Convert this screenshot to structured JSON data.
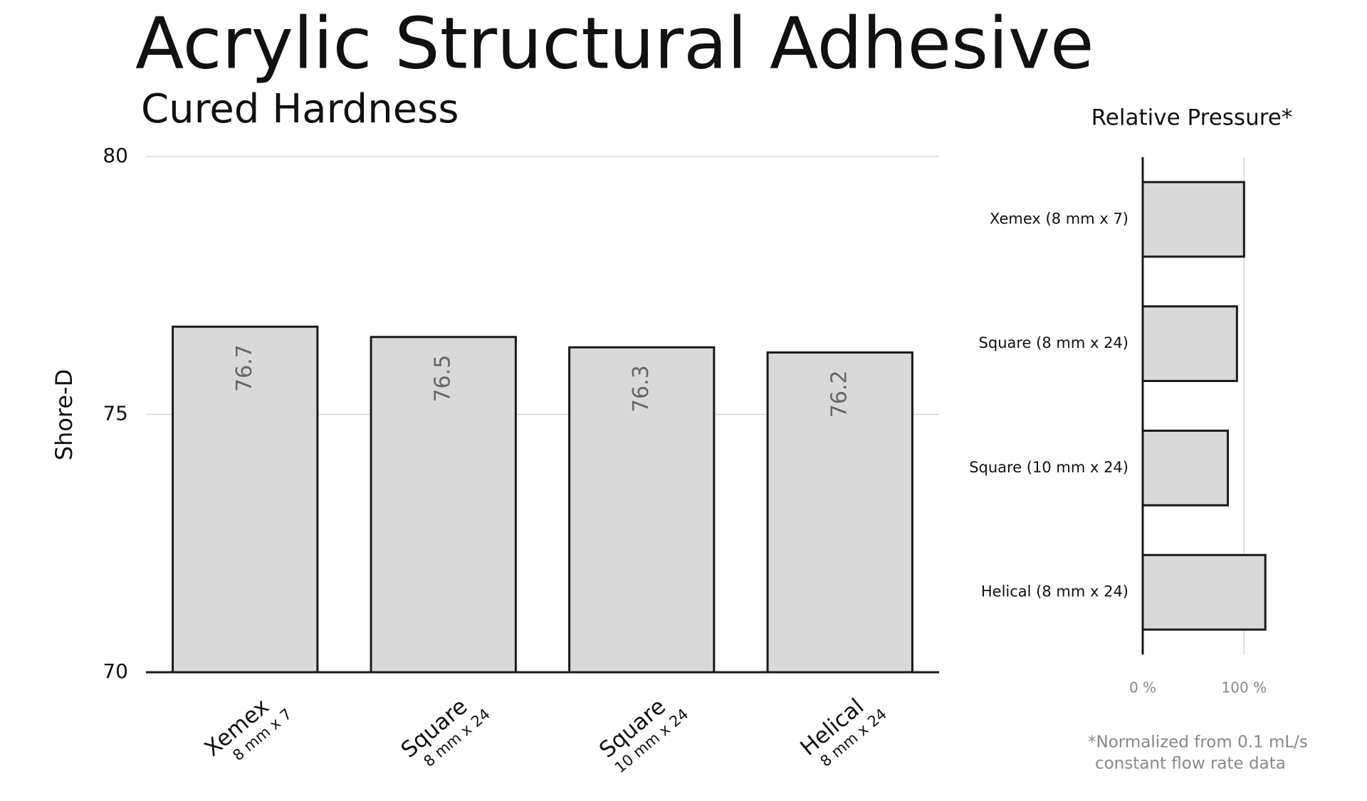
{
  "chart_data": [
    {
      "type": "bar",
      "title": "Acrylic Structural Adhesive",
      "subtitle": "Cured Hardness",
      "y_label": "Shore-D",
      "categories": [
        "Xemex",
        "Square",
        "Square",
        "Helical"
      ],
      "category_sublabels": [
        "8 mm x 7",
        "8 mm x 24",
        "10 mm x 24",
        "8 mm x 24"
      ],
      "values": [
        76.7,
        76.5,
        76.3,
        76.2
      ],
      "color": "#d9d9d9",
      "ylim": [
        70,
        80
      ],
      "yticks": [
        70,
        75,
        80
      ],
      "grid": true
    },
    {
      "type": "hbar",
      "title": "Relative Pressure*",
      "categories": [
        "Xemex (8 mm x 7)",
        "Square (8 mm x 24)",
        "Square (10 mm x 24)",
        "Helical (8 mm x 24)"
      ],
      "values": [
        100,
        93,
        84,
        121
      ],
      "color": "#d9d9d9",
      "xlim": [
        0,
        130
      ],
      "xticks": [
        {
          "value": 0,
          "label": "0 %"
        },
        {
          "value": 100,
          "label": "100 %"
        }
      ],
      "grid": true,
      "note": [
        "*Normalized from 0.1 mL/s",
        "constant flow rate data"
      ]
    }
  ]
}
